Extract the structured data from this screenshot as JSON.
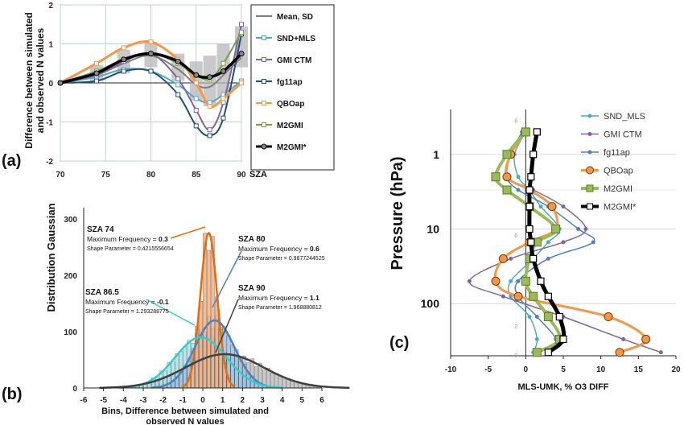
{
  "panel_labels": {
    "a": "(a)",
    "b": "(b)",
    "c": "(c)"
  },
  "chart_data": [
    {
      "id": "a",
      "type": "line",
      "xlabel": "SZA",
      "ylabel_line1": "Difference between simulated",
      "ylabel_line2": "and observed N values",
      "xlim": [
        70,
        90
      ],
      "ylim": [
        -2,
        2
      ],
      "xticks": [
        70,
        75,
        80,
        85,
        90
      ],
      "yticks": [
        -2,
        -1,
        0,
        1,
        2
      ],
      "x": [
        70,
        74,
        77,
        80,
        83,
        85,
        86.5,
        88,
        90
      ],
      "sd_band": {
        "name": "Mean, SD",
        "lower": [
          0,
          0.05,
          0.25,
          0.4,
          0.05,
          -0.45,
          -0.6,
          -0.4,
          0.4
        ],
        "upper": [
          0,
          0.45,
          0.85,
          1.05,
          0.75,
          0.55,
          0.7,
          1.0,
          1.45
        ]
      },
      "series": [
        {
          "name": "Mean, SD",
          "color": "#7f7f7f",
          "marker": "none",
          "values": [
            0,
            0.2,
            0.5,
            0.7,
            0.35,
            -0.05,
            -0.1,
            0.2,
            0.65
          ]
        },
        {
          "name": "SND+MLS",
          "color": "#4aacc6",
          "marker": "square",
          "values": [
            0,
            0.15,
            0.35,
            0.3,
            -0.05,
            -0.4,
            -0.5,
            -0.3,
            0.05
          ]
        },
        {
          "name": "GMI CTM",
          "color": "#8064a2",
          "marker": "square",
          "values": [
            0,
            0.2,
            0.55,
            0.75,
            0.1,
            -0.7,
            -1.2,
            -0.5,
            1.5
          ]
        },
        {
          "name": "fg11ap",
          "color": "#1f4e79",
          "marker": "square",
          "values": [
            0,
            0.05,
            0.3,
            0.3,
            -0.3,
            -1.1,
            -1.35,
            -0.9,
            1.25
          ]
        },
        {
          "name": "QBOap",
          "color": "#f79646",
          "marker": "square",
          "values": [
            0,
            0.5,
            0.9,
            1.05,
            0.6,
            0.0,
            -0.6,
            -0.4,
            0.0
          ]
        },
        {
          "name": "M2GMI",
          "color": "#77a03f",
          "marker": "square",
          "values": [
            0,
            0.3,
            0.6,
            0.75,
            0.5,
            0.2,
            0.1,
            0.5,
            1.3
          ]
        },
        {
          "name": "M2GMI*",
          "color": "#000000",
          "marker": "circle",
          "values": [
            0,
            0.25,
            0.6,
            0.75,
            0.55,
            0.2,
            0.15,
            0.3,
            0.75
          ]
        }
      ]
    },
    {
      "id": "b",
      "type": "bar",
      "xlabel_line1": "Bins, Difference between simulated and",
      "xlabel_line2": "observed N values",
      "ylabel": "Distribution Gaussian",
      "xlim": [
        -6,
        6
      ],
      "ylim": [
        0,
        320
      ],
      "xticks": [
        -6,
        -5,
        -4,
        -3,
        -2,
        -1,
        0,
        1,
        2,
        3,
        4,
        5,
        6
      ],
      "yticks": [
        0,
        100,
        200,
        300
      ],
      "annotations": [
        {
          "title": "SZA 74",
          "freq_label": "Maximum Frequency = ",
          "freq": "0.3",
          "shape_label": "Shape Parameter = 0.4215556654",
          "color": "#e46c0a"
        },
        {
          "title": "SZA 80",
          "freq_label": "Maximum Frequency = ",
          "freq": "0.6",
          "shape_label": "Shape Parameter = 0.9877244525",
          "color": "#4f81bd"
        },
        {
          "title": "SZA 86.5",
          "freq_label": "Maximum Frequency = ",
          "freq": "-0.1",
          "shape_label": "Shape Parameter = 1.293288775",
          "color": "#33cccc"
        },
        {
          "title": "SZA 90",
          "freq_label": "Maximum Frequency = ",
          "freq": "1.1",
          "shape_label": "Shape Parameter = 1.968880812",
          "color": "#404040"
        }
      ],
      "gaussians": [
        {
          "name": "SZA 74",
          "mu": 0.3,
          "sigma": 0.42,
          "peak": 275,
          "color": "#e46c0a",
          "fill": "#f4b183"
        },
        {
          "name": "SZA 80",
          "mu": 0.6,
          "sigma": 0.99,
          "peak": 120,
          "color": "#4f81bd",
          "fill": "#9dc3e6"
        },
        {
          "name": "SZA 86.5",
          "mu": -0.1,
          "sigma": 1.29,
          "peak": 90,
          "color": "#33cccc",
          "fill": "#a9e4ea"
        },
        {
          "name": "SZA 90",
          "mu": 1.1,
          "sigma": 1.97,
          "peak": 60,
          "color": "#404040",
          "fill": "#bfbfbf"
        }
      ]
    },
    {
      "id": "c",
      "type": "line",
      "xlabel": "MLS-UMK, % O3 DIFF",
      "ylabel": "Pressure (hPa)",
      "xlim": [
        -10,
        20
      ],
      "ylim_log": [
        500,
        0.25
      ],
      "xticks": [
        -10,
        -5,
        0,
        5,
        10,
        15,
        20
      ],
      "yticks": [
        1,
        10,
        100
      ],
      "inner_ticks": [
        {
          "label": "8",
          "p": 0.35
        },
        {
          "label": "6",
          "p": 12
        },
        {
          "label": "4",
          "p": 50
        },
        {
          "label": "2",
          "p": 200
        },
        {
          "label": "0",
          "p": 480
        }
      ],
      "pressure": [
        0.5,
        1,
        2,
        3,
        5,
        10,
        15,
        25,
        50,
        80,
        150,
        300,
        450
      ],
      "series": [
        {
          "name": "SND_MLS",
          "color": "#4bacc6",
          "marker": "dot",
          "width": 1.5,
          "values": [
            0,
            -1.5,
            -1,
            0.5,
            2,
            4.5,
            3,
            1,
            -2,
            -2,
            0.5,
            1.5,
            1
          ]
        },
        {
          "name": "GMI CTM",
          "color": "#8064a2",
          "marker": "dot",
          "width": 1.5,
          "values": [
            0,
            -2,
            -2.5,
            1,
            5,
            8,
            5,
            -2,
            -7.5,
            -3,
            5,
            13,
            18
          ]
        },
        {
          "name": "fg11ap",
          "color": "#4f81bd",
          "marker": "dot",
          "width": 1.5,
          "values": [
            -0.5,
            -2,
            -2.5,
            -1,
            3,
            7,
            9,
            3,
            -1,
            -1,
            1.5,
            4,
            3
          ]
        },
        {
          "name": "QBOap",
          "color": "#f79646",
          "marker": "circle",
          "width": 3,
          "values": [
            0,
            -2,
            -2.5,
            0.5,
            3.5,
            4,
            0.5,
            -3,
            -4,
            -1,
            11,
            16,
            12.5
          ]
        },
        {
          "name": "M2GMI",
          "color": "#9bbb59",
          "marker": "square",
          "width": 4,
          "values": [
            0,
            -2.5,
            -4,
            -2.5,
            0.5,
            4,
            1.5,
            0.5,
            0,
            1,
            3,
            4.5,
            1.5
          ]
        },
        {
          "name": "M2GMI*",
          "color": "#000000",
          "marker": "square-open",
          "width": 5,
          "values": [
            1.5,
            1,
            0.7,
            0.5,
            0.5,
            0.5,
            0.7,
            1,
            2,
            3,
            4.5,
            5,
            3
          ]
        }
      ]
    }
  ]
}
